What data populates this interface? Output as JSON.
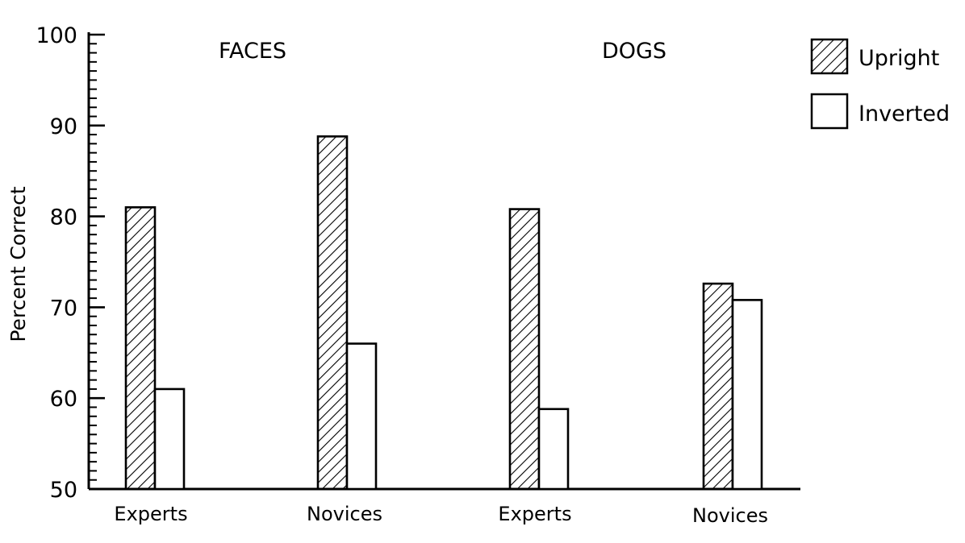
{
  "chart_data": {
    "type": "bar",
    "ylabel": "Percent Correct",
    "xlabel": "",
    "ylim": [
      50,
      100
    ],
    "yticks": [
      50,
      60,
      70,
      80,
      90,
      100
    ],
    "ytick_labels": [
      "50",
      "60",
      "70",
      "80",
      "90",
      "100"
    ],
    "minor_tick_step": 1,
    "panels": [
      "FACES",
      "DOGS"
    ],
    "categories": [
      "Experts",
      "Novices",
      "Experts",
      "Novices"
    ],
    "category_panel": [
      "FACES",
      "FACES",
      "DOGS",
      "DOGS"
    ],
    "series": [
      {
        "name": "Upright",
        "pattern": "hatched",
        "values": [
          81,
          88.8,
          80.8,
          72.6
        ]
      },
      {
        "name": "Inverted",
        "pattern": "plain",
        "values": [
          61,
          66,
          58.8,
          70.8
        ]
      }
    ],
    "legend_position": "top-right",
    "grid": false
  }
}
